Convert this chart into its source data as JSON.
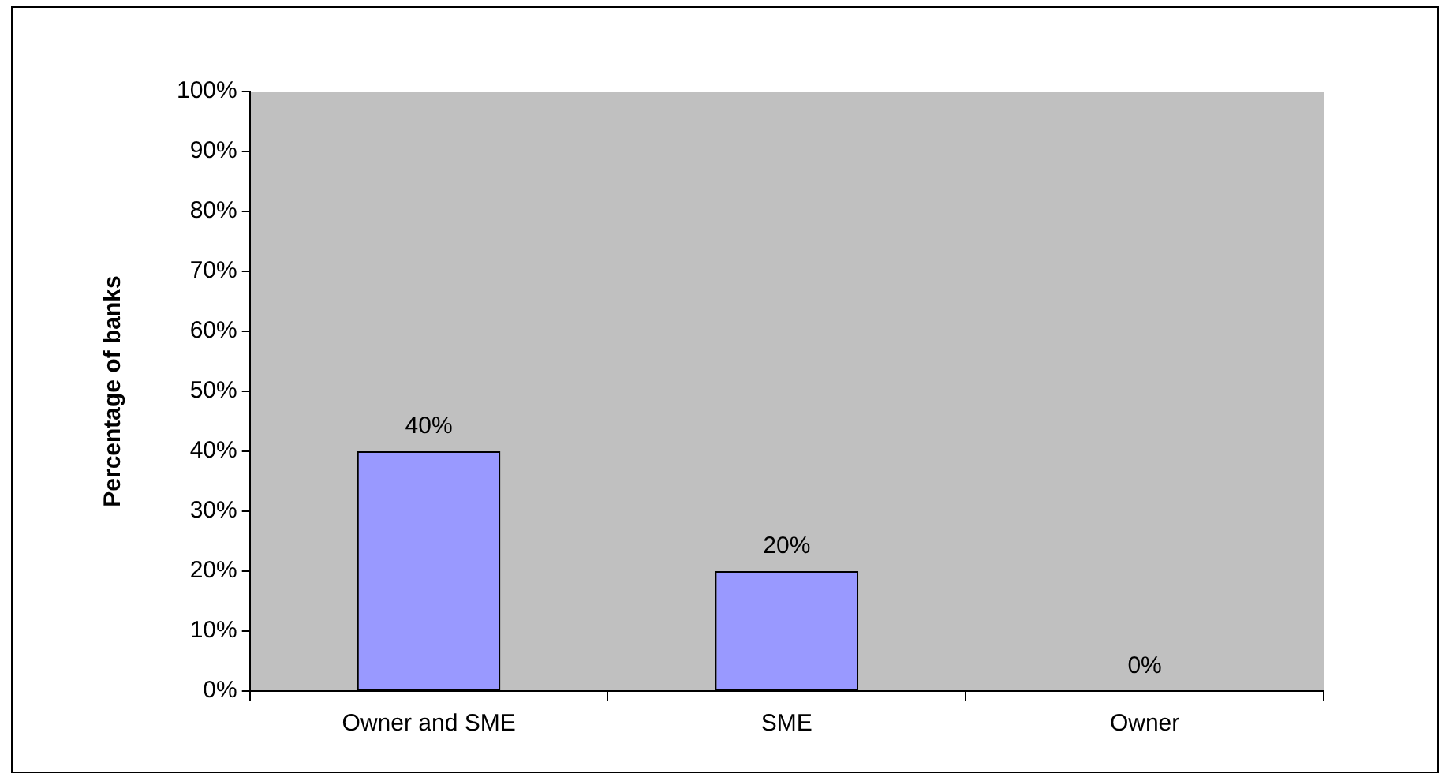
{
  "chart_data": {
    "type": "bar",
    "ylabel": "Percentage of banks",
    "categories": [
      "Owner and SME",
      "SME",
      "Owner"
    ],
    "values": [
      40,
      20,
      0
    ],
    "value_labels": [
      "40%",
      "20%",
      "0%"
    ],
    "color": "#9999ff",
    "ylim": [
      0,
      100
    ],
    "yticks": [
      {
        "value": 0,
        "label": "0%"
      },
      {
        "value": 10,
        "label": "10%"
      },
      {
        "value": 20,
        "label": "20%"
      },
      {
        "value": 30,
        "label": "30%"
      },
      {
        "value": 40,
        "label": "40%"
      },
      {
        "value": 50,
        "label": "50%"
      },
      {
        "value": 60,
        "label": "60%"
      },
      {
        "value": 70,
        "label": "70%"
      },
      {
        "value": 80,
        "label": "80%"
      },
      {
        "value": 90,
        "label": "90%"
      },
      {
        "value": 100,
        "label": "100%"
      }
    ]
  }
}
